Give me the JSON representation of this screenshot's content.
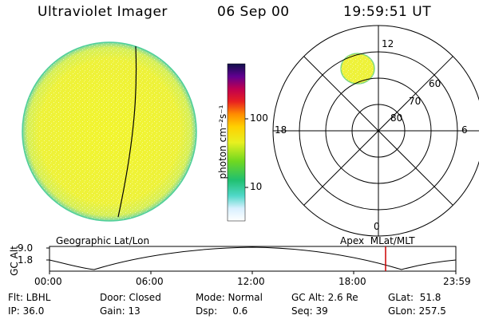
{
  "header": {
    "instrument": "Ultraviolet Imager",
    "date": "06 Sep 00",
    "time": "19:59:51 UT"
  },
  "colorbar": {
    "unit_label": "photon cm⁻²s⁻¹",
    "ticks": [
      "100",
      "10"
    ]
  },
  "polar_plot": {
    "mlt_labels": [
      "12",
      "18",
      "6",
      "0"
    ],
    "lat_labels": [
      "60",
      "70",
      "80"
    ]
  },
  "orbit_panel": {
    "left_label": "Geographic Lat/Lon",
    "right_label": "Apex  MLat/MLT",
    "y_axis_title": "GC Alt",
    "y_ticks": [
      "9.0",
      "1.8"
    ],
    "x_ticks": [
      "00:00",
      "06:00",
      "12:00",
      "18:00",
      "23:59"
    ],
    "current_time_color": "#cc0000"
  },
  "status": {
    "row1": {
      "filter": "Flt: LBHL",
      "door": "Door: Closed",
      "mode": "Mode: Normal",
      "gc_alt": "GC Alt: 2.6 Re",
      "glat": "GLat:  51.8"
    },
    "row2": {
      "ip": "IP: 36.0",
      "gain": "Gain: 13",
      "dsp": "Dsp:     0.6",
      "seq": "Seq: 39",
      "glon": "GLon: 257.5"
    }
  },
  "colors": {
    "disk_fill": "#eef23a",
    "disk_edge": "#7fd97f"
  }
}
